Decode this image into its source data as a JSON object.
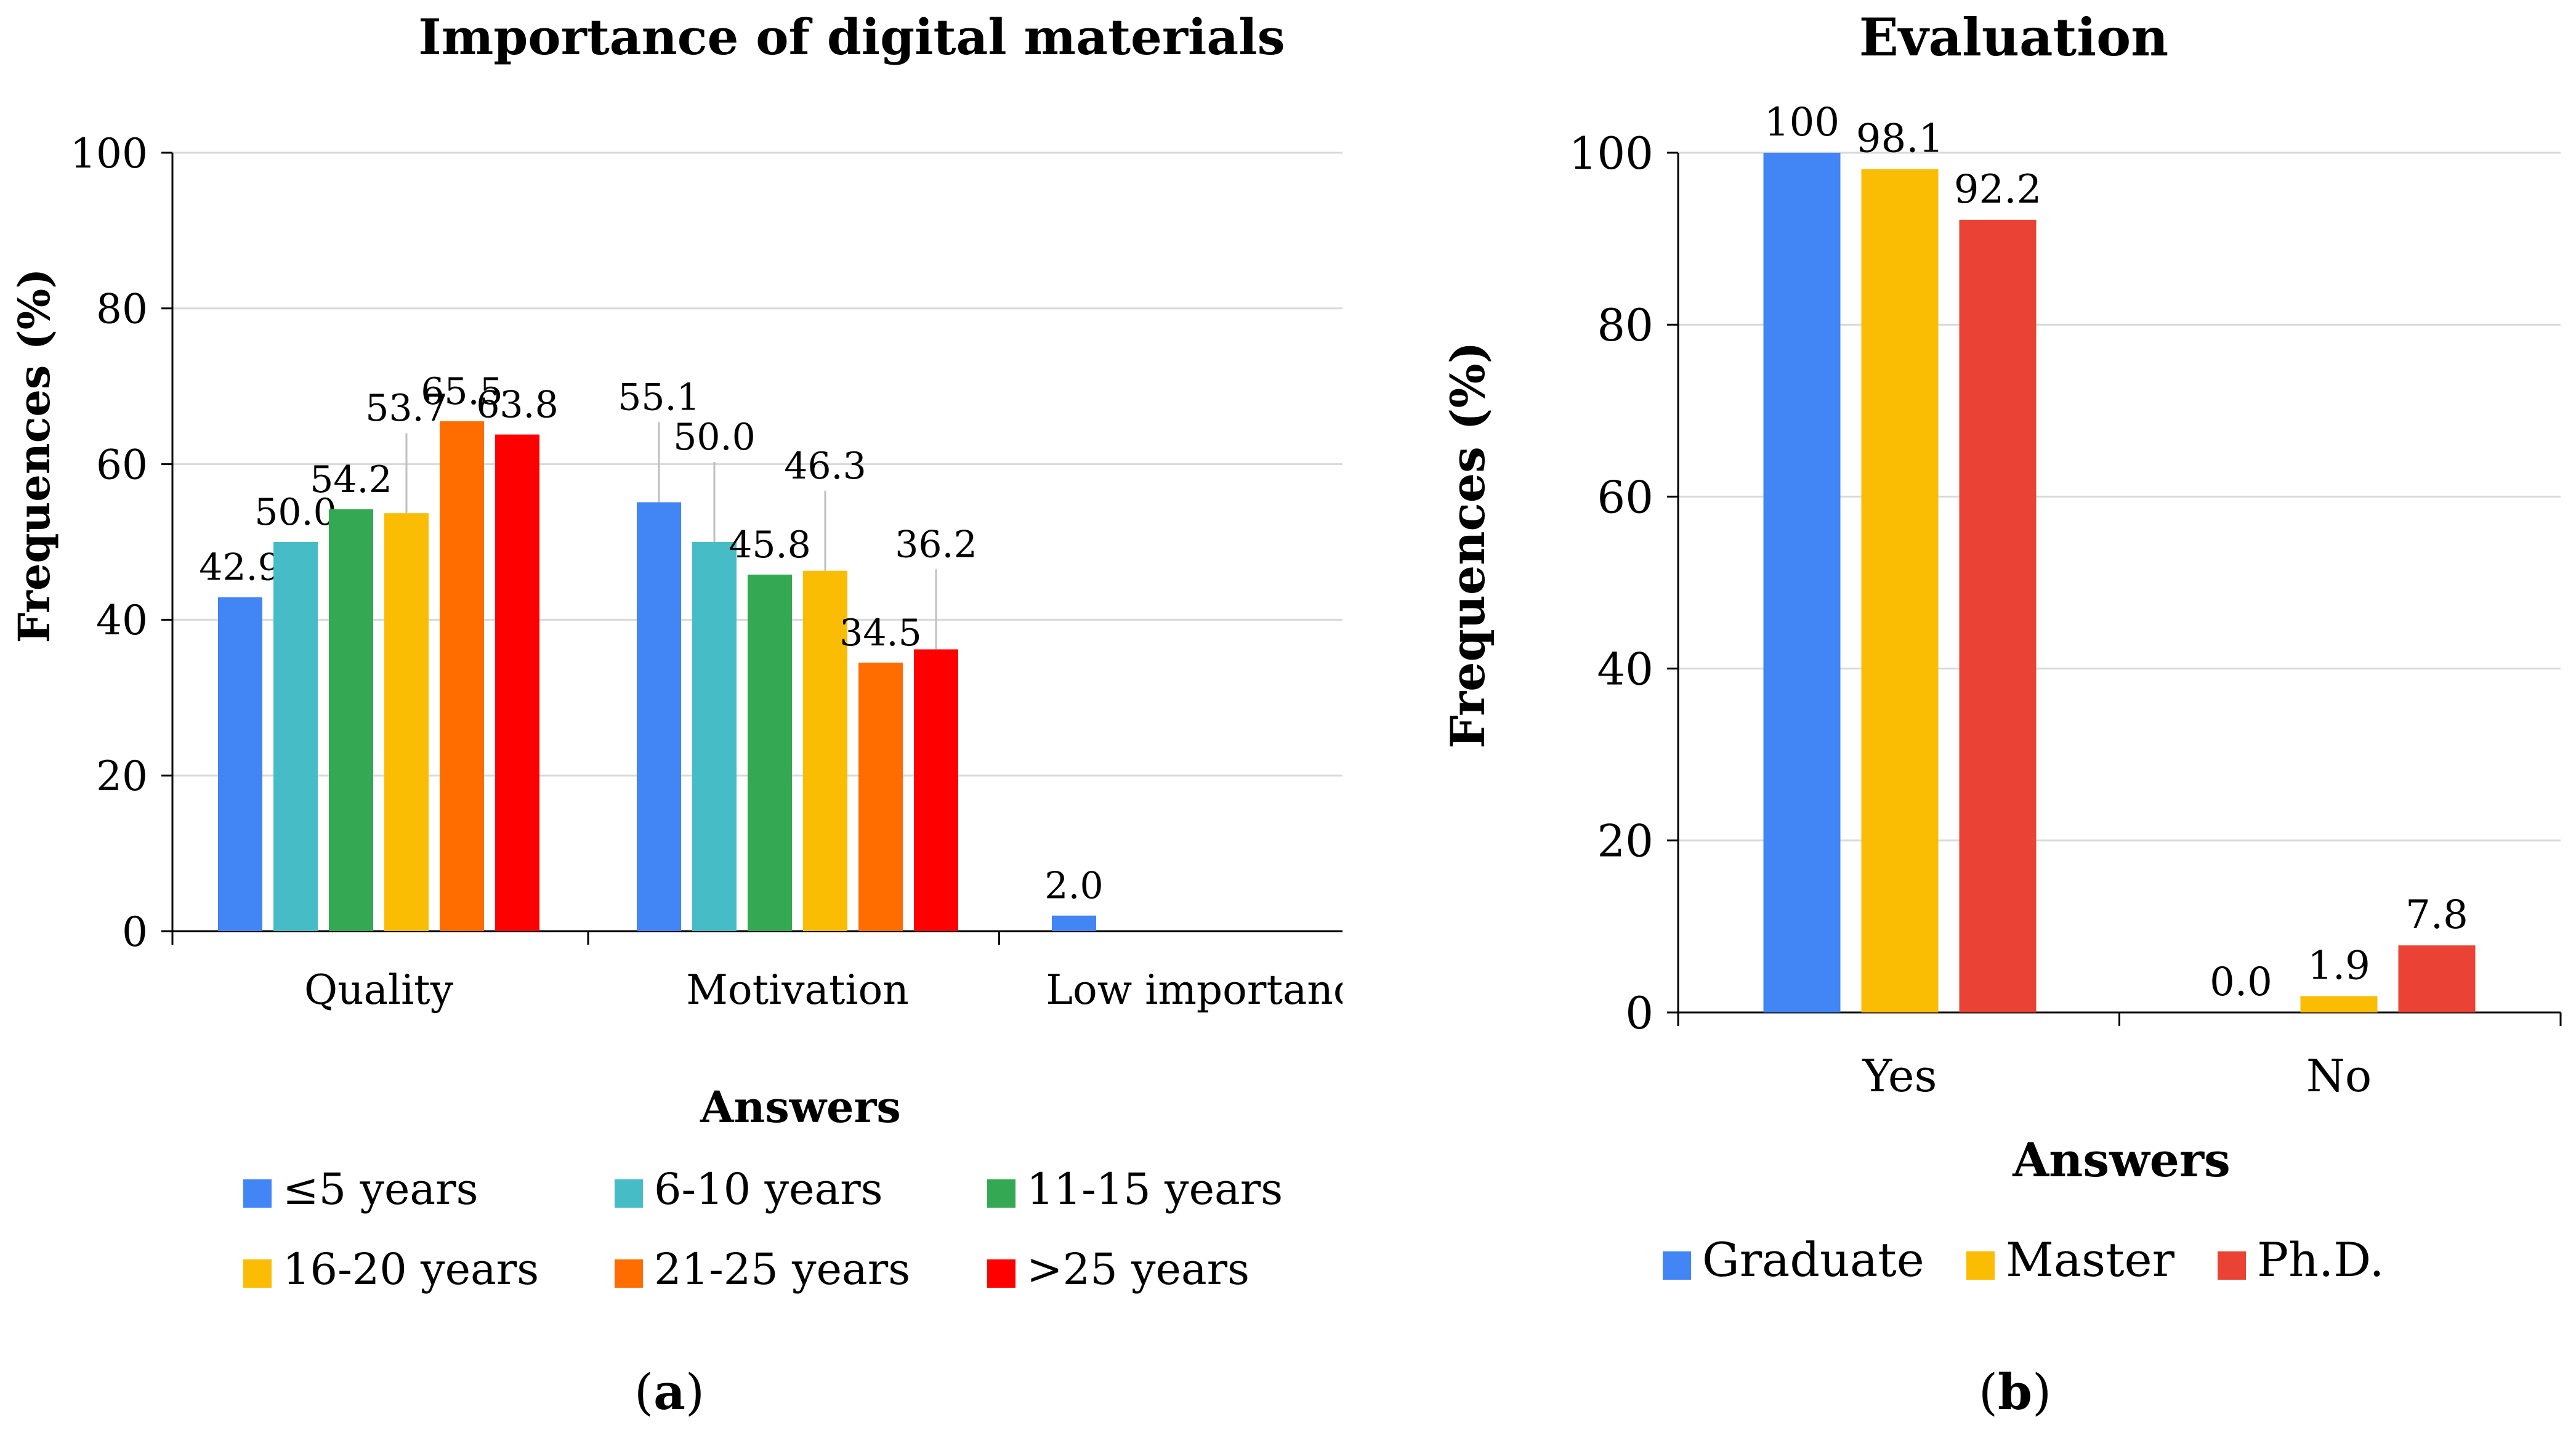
{
  "chart_data": [
    {
      "type": "bar",
      "title": "Importance of digital materials",
      "xlabel": "Answers",
      "ylabel": "Frequences (%)",
      "ylim": [
        0,
        100
      ],
      "yticks": [
        "0",
        "20",
        "40",
        "60",
        "80",
        "100"
      ],
      "grid": true,
      "legend_position": "bottom",
      "categories": [
        "Quality",
        "Motivation",
        "Low importanc"
      ],
      "series": [
        {
          "name": "≤5 years",
          "color": "#4285f4",
          "values": [
            42.9,
            55.1,
            2.0
          ],
          "labels": [
            "42.9",
            "55.1",
            "2.0"
          ]
        },
        {
          "name": "6-10 years",
          "color": "#46bdc6",
          "values": [
            50.0,
            50.0,
            null
          ],
          "labels": [
            "50.0",
            "50.0",
            ""
          ]
        },
        {
          "name": "11-15 years",
          "color": "#34a853",
          "values": [
            54.2,
            45.8,
            null
          ],
          "labels": [
            "54.2",
            "45.8",
            ""
          ]
        },
        {
          "name": "16-20 years",
          "color": "#fbbc04",
          "values": [
            53.7,
            46.3,
            null
          ],
          "labels": [
            "53.7",
            "46.3",
            ""
          ]
        },
        {
          "name": "21-25 years",
          "color": "#ff6d01",
          "values": [
            65.5,
            34.5,
            null
          ],
          "labels": [
            "65.5",
            "34.5",
            ""
          ]
        },
        {
          "name": ">25 years",
          "color": "#ff0000",
          "values": [
            63.8,
            36.2,
            null
          ],
          "labels": [
            "63.8",
            "36.2",
            ""
          ]
        }
      ],
      "panel_label": "a"
    },
    {
      "type": "bar",
      "title": "Evaluation",
      "xlabel": "Answers",
      "ylabel": "Frequences (%)",
      "ylim": [
        0,
        100
      ],
      "yticks": [
        "0",
        "20",
        "40",
        "60",
        "80",
        "100"
      ],
      "grid": true,
      "legend_position": "bottom",
      "categories": [
        "Yes",
        "No"
      ],
      "series": [
        {
          "name": "Graduate",
          "color": "#4285f4",
          "values": [
            100,
            0.0
          ],
          "labels": [
            "100",
            "0.0"
          ]
        },
        {
          "name": "Master",
          "color": "#fbbc04",
          "values": [
            98.1,
            1.9
          ],
          "labels": [
            "98.1",
            "1.9"
          ]
        },
        {
          "name": "Ph.D.",
          "color": "#ea4335",
          "values": [
            92.2,
            7.8
          ],
          "labels": [
            "92.2",
            "7.8"
          ]
        }
      ],
      "panel_label": "b"
    }
  ]
}
